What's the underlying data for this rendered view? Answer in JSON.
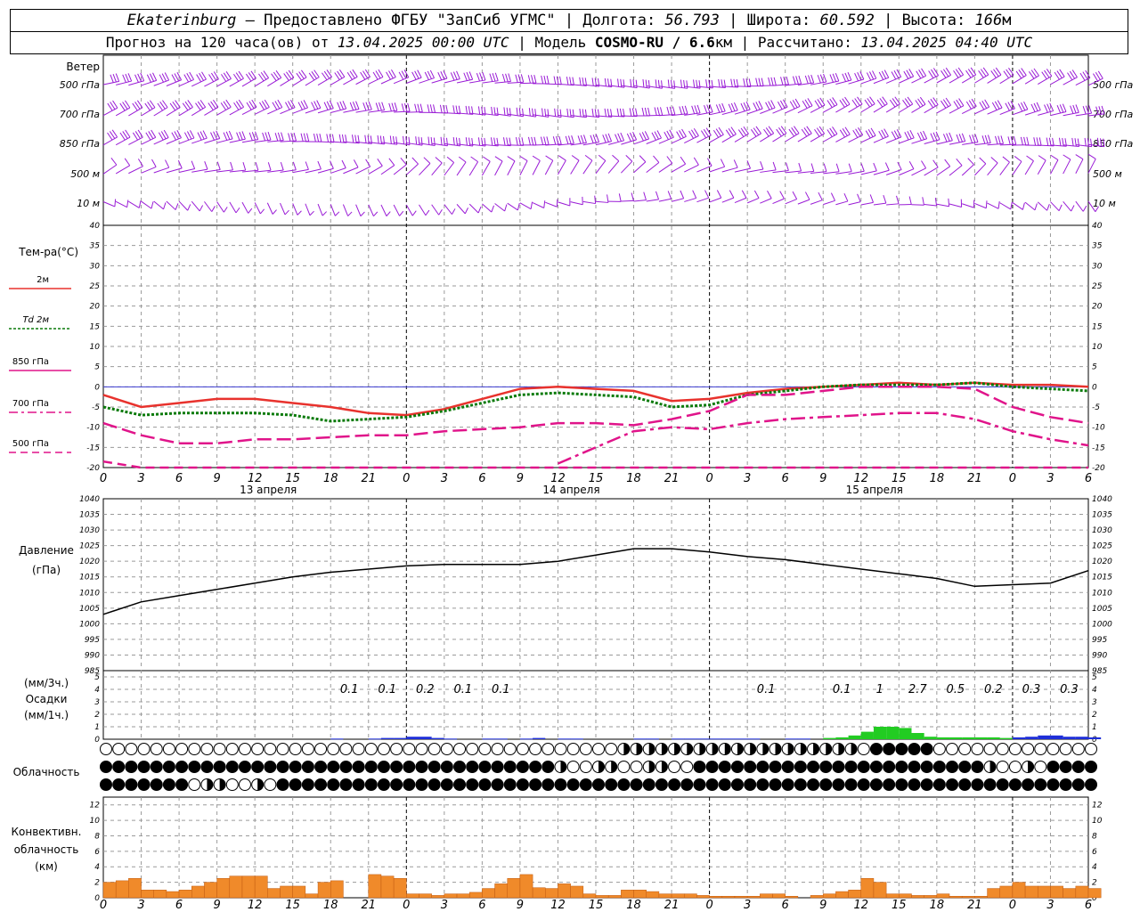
{
  "header": {
    "city": "Ekaterinburg",
    "provider": " – Предоставлено ФГБУ \"ЗапСиб УГМС\" | Долгота: ",
    "lon": "56.793",
    "lat_label": " | Широта: ",
    "lat": "60.592",
    "alt_label": " | Высота: ",
    "alt": "166",
    "alt_unit": "м",
    "forecast_label": "Прогноз на 120 часа(ов) от ",
    "forecast_time": "13.04.2025 00:00 UTC",
    "model_label": " | Модель ",
    "model": "COSMO-RU / 6.6",
    "model_unit": "км",
    "calc_label": " | Рассчитано: ",
    "calc_time": "13.04.2025 04:40 UTC"
  },
  "colors": {
    "wind": "#9a1cd6",
    "t2m": "#e8322d",
    "td2m": "#0a7a0a",
    "t850": "#e0148a",
    "t700": "#e0148a",
    "t500": "#e0148a",
    "zero_line": "#3a3ad0",
    "pressure": "#000000",
    "precip_blue": "#1f2fd8",
    "precip_green": "#22cc22",
    "convective": "#f08a2a",
    "grid": "#9a9a9a"
  },
  "wind_panel": {
    "title": "Ветер",
    "levels": [
      "500 гПа",
      "700 гПа",
      "850 гПа",
      "500 м",
      "10 м"
    ]
  },
  "temp_panel": {
    "title": "Тем-ра(°C)",
    "legend": [
      {
        "label": "2м",
        "style": "solid",
        "color_key": "t2m"
      },
      {
        "label": "Td  2м",
        "style": "dotted",
        "color_key": "td2m"
      },
      {
        "label": "850 гПа",
        "style": "solid",
        "color_key": "t850"
      },
      {
        "label": "700 гПа",
        "style": "dashdot",
        "color_key": "t700"
      },
      {
        "label": "500 гПа",
        "style": "dash",
        "color_key": "t500"
      }
    ],
    "yticks": [
      "40",
      "35",
      "30",
      "25",
      "20",
      "15",
      "10",
      "5",
      "0",
      "-5",
      "-10",
      "-15",
      "-20"
    ]
  },
  "time_axis": {
    "hour_labels": [
      "0",
      "3",
      "6",
      "9",
      "12",
      "15",
      "18",
      "21",
      "0",
      "3",
      "6",
      "9",
      "12",
      "15",
      "18",
      "21",
      "0",
      "3",
      "6",
      "9",
      "12",
      "15",
      "18",
      "21",
      "0",
      "3",
      "6"
    ],
    "dates": [
      "13 апреля",
      "14 апреля",
      "15 апреля"
    ]
  },
  "pressure_panel": {
    "title_1": "Давление",
    "title_2": "(гПа)",
    "yticks": [
      "1040",
      "1035",
      "1030",
      "1025",
      "1020",
      "1015",
      "1010",
      "1005",
      "1000",
      "995",
      "990",
      "985"
    ]
  },
  "precip_panel": {
    "title_1": "(мм/3ч.)",
    "title_2": "Осадки",
    "title_3": "(мм/1ч.)",
    "yticks": [
      "5",
      "4",
      "3",
      "2",
      "1",
      "0"
    ],
    "totals": [
      {
        "hour": 6,
        "text": "0.1"
      },
      {
        "hour": 7,
        "text": "0.1"
      },
      {
        "hour": 8,
        "text": "0.2"
      },
      {
        "hour": 9,
        "text": "0.1"
      },
      {
        "hour": 10,
        "text": "0.1"
      },
      {
        "hour": 17,
        "text": "0.1"
      },
      {
        "hour": 19,
        "text": "0.1"
      },
      {
        "hour": 20,
        "text": "1"
      },
      {
        "hour": 21,
        "text": "2.7"
      },
      {
        "hour": 22,
        "text": "0.5"
      },
      {
        "hour": 23,
        "text": "0.2"
      },
      {
        "hour": 24,
        "text": "0.3"
      },
      {
        "hour": 25,
        "text": "0.3"
      }
    ]
  },
  "cloud_panel": {
    "title": "Облачность"
  },
  "conv_panel": {
    "title_1": "Конвективн.",
    "title_2": "облачность",
    "title_3": "(км)",
    "yticks": [
      "12",
      "10",
      "8",
      "6",
      "4",
      "2",
      "0"
    ]
  },
  "chart_data": [
    {
      "type": "line",
      "name": "temperature",
      "x_unit": "hours since 13.04.2025 00 UTC",
      "ylim": [
        -20,
        40
      ],
      "x": [
        0,
        3,
        6,
        9,
        12,
        15,
        18,
        21,
        24,
        27,
        30,
        33,
        36,
        39,
        42,
        45,
        48,
        51,
        54,
        57,
        60,
        63,
        66,
        69,
        72,
        75,
        78
      ],
      "series": [
        {
          "name": "2м",
          "values": [
            -2,
            -5,
            -4,
            -3,
            -3,
            -4,
            -5,
            -6.5,
            -7,
            -5.5,
            -3,
            -0.5,
            0,
            -0.5,
            -1,
            -3.5,
            -3,
            -1.5,
            -0.5,
            0,
            0.5,
            1,
            0.5,
            1,
            0.5,
            0.5,
            0
          ]
        },
        {
          "name": "Td 2м",
          "values": [
            -5,
            -7,
            -6.5,
            -6.5,
            -6.5,
            -7,
            -8.5,
            -8,
            -7.5,
            -6,
            -4,
            -2,
            -1.5,
            -2,
            -2.5,
            -5,
            -4.5,
            -2,
            -1,
            0,
            0.5,
            0.5,
            0.5,
            1,
            0,
            -0.5,
            -1
          ]
        },
        {
          "name": "850 гПа",
          "values": [
            -9,
            -12,
            -14,
            -14,
            -13,
            -13,
            -12.5,
            -12,
            -12,
            -11,
            -10.5,
            -10,
            -9,
            -9,
            -9.5,
            -8,
            -6,
            -2,
            -2,
            -1,
            0,
            0,
            0,
            -0.5,
            -5,
            -7.5,
            -9
          ]
        },
        {
          "name": "700 гПа",
          "values": [
            null,
            null,
            null,
            null,
            null,
            null,
            null,
            null,
            null,
            null,
            null,
            null,
            -19,
            -15,
            -11,
            -10,
            -10.5,
            -9,
            -8,
            -7.5,
            -7,
            -6.5,
            -6.5,
            -8,
            -11,
            -13,
            -14.5
          ]
        },
        {
          "name": "500 гПа",
          "values": [
            -18.5,
            -20,
            -21,
            -22,
            -22,
            -22,
            -22,
            -22,
            -22,
            -22,
            -22,
            -22,
            -22,
            -22,
            -22,
            -22,
            -22,
            -22,
            -22,
            -22,
            -22,
            -22,
            -22,
            -22,
            -22,
            -22,
            -22
          ]
        }
      ]
    },
    {
      "type": "line",
      "name": "pressure",
      "x_unit": "hours since 13.04.2025 00 UTC",
      "ylim": [
        985,
        1040
      ],
      "x": [
        0,
        3,
        6,
        9,
        12,
        15,
        18,
        21,
        24,
        27,
        30,
        33,
        36,
        39,
        42,
        45,
        48,
        51,
        54,
        57,
        60,
        63,
        66,
        69,
        72,
        75,
        78
      ],
      "values": [
        1003,
        1007,
        1009,
        1011,
        1013,
        1015,
        1016.5,
        1017.5,
        1018.5,
        1019,
        1019,
        1019,
        1020,
        1022,
        1024,
        1024,
        1023,
        1021.5,
        1020.5,
        1019,
        1017.5,
        1016,
        1014.5,
        1012,
        1012.5,
        1013,
        1017
      ]
    },
    {
      "type": "bar",
      "name": "precipitation_mm_per_1h",
      "x_unit": "hours since 13.04.2025 00 UTC",
      "ylim": [
        0,
        5
      ],
      "x": [
        18,
        21,
        22,
        23,
        24,
        25,
        26,
        27,
        30,
        31,
        33,
        34,
        36,
        37,
        42,
        43,
        45,
        46,
        47,
        48,
        49,
        50,
        51,
        54,
        55,
        57,
        58,
        59,
        60,
        61,
        62,
        63,
        64,
        65,
        66,
        67,
        68,
        69,
        70,
        71,
        72,
        73,
        74,
        75,
        76,
        77,
        78
      ],
      "values": [
        0.05,
        0.05,
        0.1,
        0.1,
        0.2,
        0.2,
        0.1,
        0.05,
        0.05,
        0.05,
        0.05,
        0.1,
        0.05,
        0.05,
        0.05,
        0.05,
        0.05,
        0.05,
        0.05,
        0.05,
        0.05,
        0.05,
        0.05,
        0.05,
        0.05,
        0.1,
        0.15,
        0.3,
        0.6,
        1,
        1,
        0.9,
        0.5,
        0.2,
        0.15,
        0.15,
        0.15,
        0.15,
        0.15,
        0.1,
        0.15,
        0.2,
        0.3,
        0.3,
        0.2,
        0.2,
        0.15
      ]
    },
    {
      "type": "bar",
      "name": "convective_cloud_km",
      "x_unit": "hours since 13.04.2025 00 UTC",
      "ylim": [
        0,
        13
      ],
      "x": [
        0,
        1,
        2,
        3,
        4,
        5,
        6,
        7,
        8,
        9,
        10,
        11,
        12,
        13,
        14,
        15,
        16,
        17,
        18,
        19,
        20,
        21,
        22,
        23,
        24,
        25,
        26,
        27,
        28,
        29,
        30,
        31,
        32,
        33,
        34,
        35,
        36,
        37,
        38,
        39,
        40,
        41,
        42,
        43,
        44,
        45,
        46,
        47,
        48,
        49,
        50,
        51,
        52,
        53,
        54,
        55,
        56,
        57,
        58,
        59,
        60,
        61,
        62,
        63,
        64,
        65,
        66,
        67,
        68,
        69,
        70,
        71,
        72,
        73,
        74,
        75,
        76,
        77,
        78
      ],
      "values": [
        2,
        2.2,
        2.5,
        1,
        1,
        0.8,
        1,
        1.5,
        2,
        2.5,
        2.8,
        2.8,
        2.8,
        1.2,
        1.5,
        1.5,
        0.5,
        2,
        2.2,
        0,
        0,
        3,
        2.8,
        2.5,
        0.5,
        0.5,
        0.3,
        0.5,
        0.5,
        0.7,
        1.2,
        1.8,
        2.5,
        3,
        1.3,
        1.2,
        1.8,
        1.5,
        0.5,
        0.3,
        0.3,
        1,
        1,
        0.8,
        0.5,
        0.5,
        0.5,
        0.3,
        0.2,
        0.2,
        0.2,
        0.2,
        0.5,
        0.5,
        0.2,
        0,
        0.3,
        0.5,
        0.8,
        1,
        2.5,
        2,
        0.5,
        0.5,
        0.3,
        0.3,
        0.5,
        0.2,
        0.2,
        0.2,
        1.2,
        1.5,
        2,
        1.5,
        1.5,
        1.5,
        1.2,
        1.5,
        1.2
      ]
    }
  ]
}
